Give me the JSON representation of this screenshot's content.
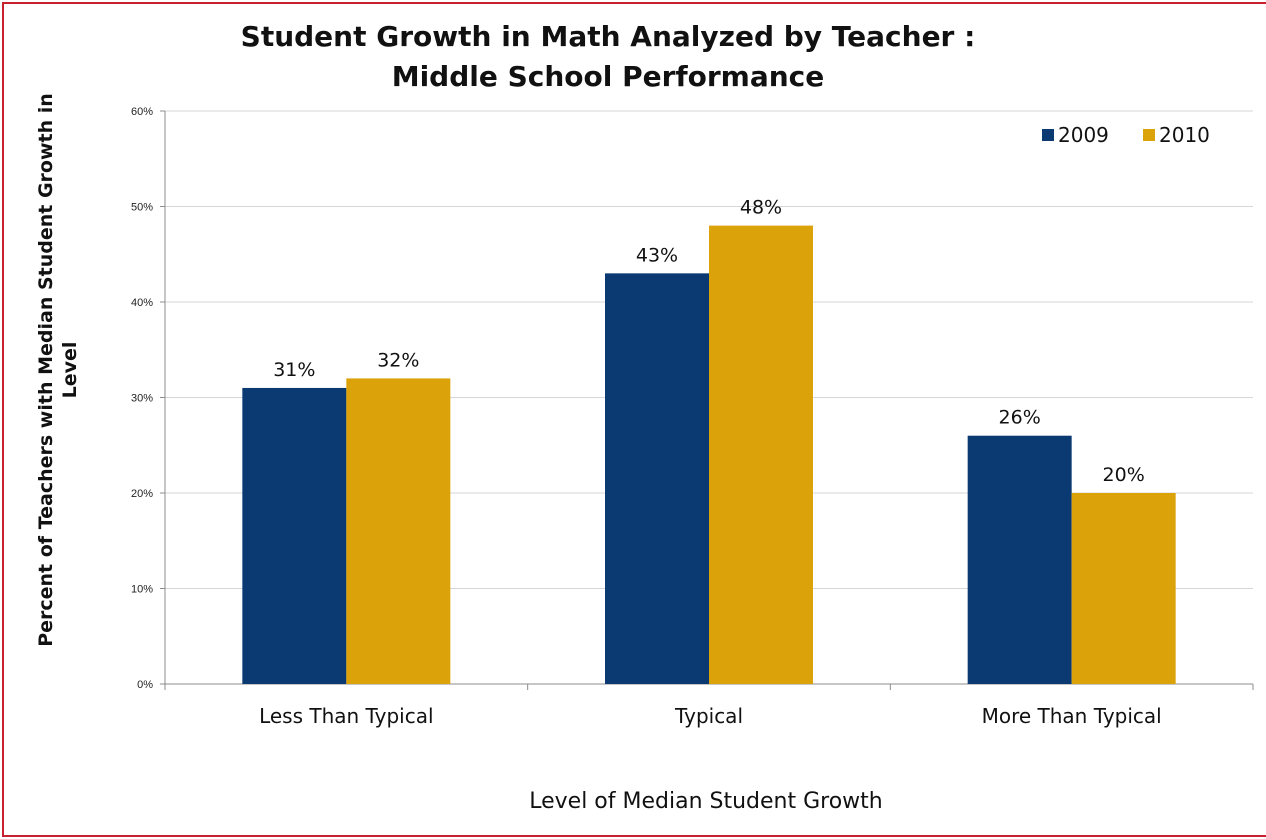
{
  "chart_data": {
    "type": "bar",
    "title_lines": [
      "Student Growth in Math Analyzed by Teacher :",
      "Middle School Performance"
    ],
    "categories": [
      "Less Than Typical",
      "Typical",
      "More Than Typical"
    ],
    "series": [
      {
        "name": "2009",
        "color": "#0b3a73",
        "values": [
          31,
          43,
          26
        ],
        "labels": [
          "31%",
          "43%",
          "26%"
        ]
      },
      {
        "name": "2010",
        "color": "#dba20a",
        "values": [
          32,
          48,
          20
        ],
        "labels": [
          "32%",
          "48%",
          "20%"
        ]
      }
    ],
    "xlabel": "Level of Median Student Growth",
    "ylabel_lines": [
      "Percent of Teachers with Median Student Growth in",
      "Level"
    ],
    "ylim": [
      0,
      60
    ],
    "yticks": [
      0,
      10,
      20,
      30,
      40,
      50,
      60
    ],
    "ytick_labels": [
      "0%",
      "10%",
      "20%",
      "30%",
      "40%",
      "50%",
      "60%"
    ],
    "grid": true,
    "legend_position": "top-right"
  }
}
